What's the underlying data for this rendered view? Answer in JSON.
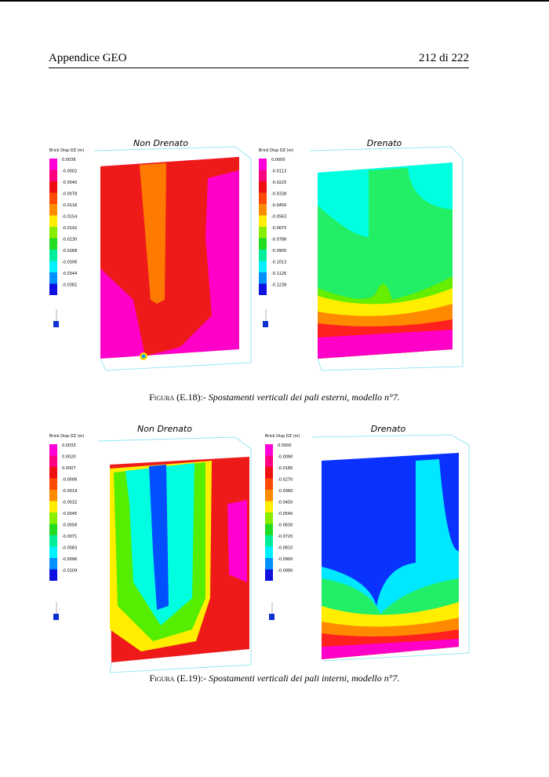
{
  "header": {
    "title": "Appendice GEO",
    "page": "212 di 222"
  },
  "figures": [
    {
      "panels": [
        {
          "title": "Non Drenato",
          "legend_title": "Brick Disp DZ (m)",
          "legend_values": [
            "0.0036",
            "-0.0002",
            "-0.0040",
            "-0.0078",
            "-0.0116",
            "-0.0154",
            "-0.0192",
            "-0.0230",
            "-0.0268",
            "-0.0306",
            "-0.0344",
            "-0.0382"
          ]
        },
        {
          "title": "Drenato",
          "legend_title": "Brick Disp DZ (m)",
          "legend_values": [
            "0.0000",
            "-0.0113",
            "-0.0225",
            "-0.0338",
            "-0.0450",
            "-0.0563",
            "-0.0675",
            "-0.0788",
            "-0.0900",
            "-0.1013",
            "-0.1126",
            "-0.1238"
          ]
        }
      ],
      "caption": {
        "label": "Figura (E.18):-",
        "text": "Spostamenti verticali dei pali esterni, modello n°7."
      }
    },
    {
      "panels": [
        {
          "title": "Non Drenato",
          "legend_title": "Brick Disp DZ (m)",
          "legend_values": [
            "0.0033",
            "0.0020",
            "0.0007",
            "-0.0006",
            "-0.0019",
            "-0.0032",
            "-0.0045",
            "-0.0058",
            "-0.0071",
            "-0.0083",
            "-0.0096",
            "-0.0109"
          ]
        },
        {
          "title": "Drenato",
          "legend_title": "Brick Disp DZ (m)",
          "legend_values": [
            "0.0000",
            "-0.0090",
            "-0.0180",
            "-0.0270",
            "-0.0360",
            "-0.0450",
            "-0.0540",
            "-0.0630",
            "-0.0720",
            "-0.0810",
            "-0.0900",
            "-0.0990"
          ]
        }
      ],
      "caption": {
        "label": "Figura (E.19):-",
        "text": "Spostamenti verticali dei pali interni, modello n°7."
      }
    }
  ]
}
